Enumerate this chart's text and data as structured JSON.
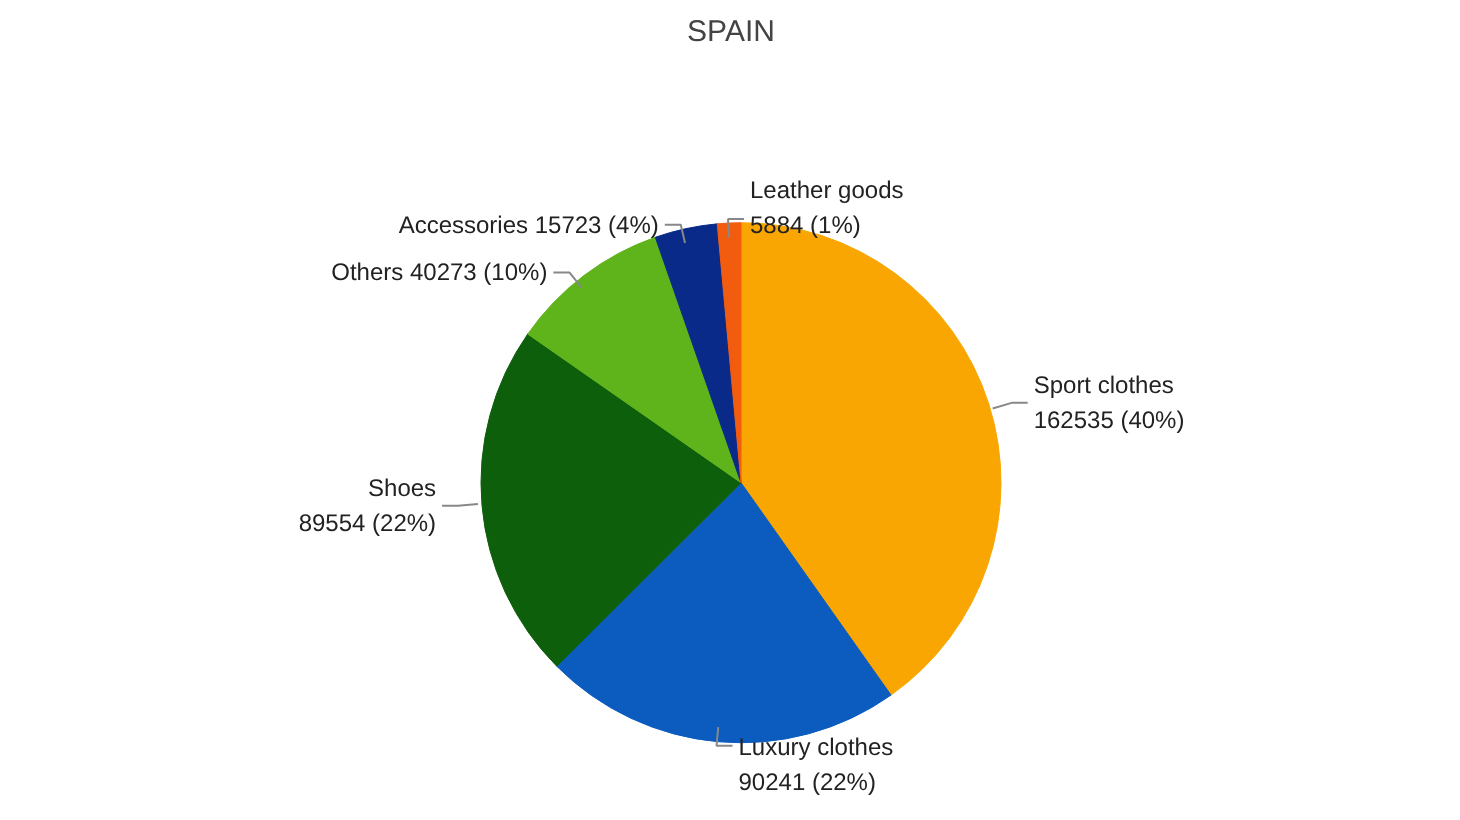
{
  "chart_data": {
    "type": "pie",
    "title": "SPAIN",
    "categories": [
      "Sport clothes",
      "Luxury clothes",
      "Shoes",
      "Others",
      "Accessories",
      "Leather goods"
    ],
    "values": [
      162535,
      90241,
      89554,
      40273,
      15723,
      5884
    ],
    "value_labels": [
      "162535 (40%)",
      "90241 (22%)",
      "89554 (22%)",
      "40273 (10%)",
      "15723 (4%)",
      "5884 (1%)"
    ],
    "colors": [
      "#f9a602",
      "#0b5cbe",
      "#0e5f0b",
      "#5fb41c",
      "#0a2a8a",
      "#f25c0f"
    ]
  }
}
